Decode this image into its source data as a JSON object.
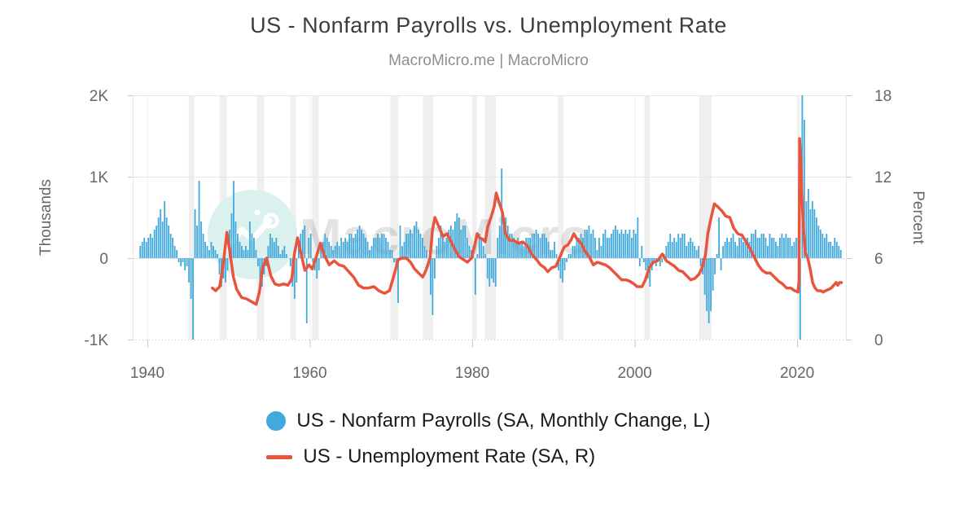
{
  "title": "US - Nonfarm Payrolls vs. Unemployment Rate",
  "subtitle": "MacroMicro.me | MacroMicro",
  "watermark_text": "MacroMicro",
  "colors": {
    "payrolls_blue": "#41a9dc",
    "unemployment_red": "#e8543c",
    "recession_band": "#efefef",
    "grid": "#e7e7e7",
    "axis_text": "#666666",
    "title_text": "#3c3c3c",
    "subtitle_text": "#8e8e8e",
    "legend_text": "#1b1b1b"
  },
  "legend": {
    "items": [
      {
        "label": "US - Nonfarm Payrolls (SA, Monthly Change, L)",
        "marker": "circle",
        "color": "#41a9dc"
      },
      {
        "label": "US - Unemployment Rate (SA, R)",
        "marker": "line",
        "color": "#e8543c"
      }
    ]
  },
  "chart_data": {
    "type": "bar+line",
    "title": "US - Nonfarm Payrolls vs. Unemployment Rate",
    "axes": {
      "x": {
        "min": 1938.2,
        "max": 2026.1,
        "ticks": [
          1940,
          1960,
          1980,
          2000,
          2020
        ]
      },
      "y_left": {
        "label": "Thousands",
        "min": -1000,
        "max": 2000,
        "ticks": [
          {
            "value": 2000,
            "label": "2K"
          },
          {
            "value": 1000,
            "label": "1K"
          },
          {
            "value": 0,
            "label": "0"
          },
          {
            "value": -1000,
            "label": "-1K"
          }
        ]
      },
      "y_right": {
        "label": "Percent",
        "min": 0,
        "max": 18,
        "ticks": [
          {
            "value": 18,
            "label": "18"
          },
          {
            "value": 12,
            "label": "12"
          },
          {
            "value": 6,
            "label": "6"
          },
          {
            "value": 0,
            "label": "0"
          }
        ]
      }
    },
    "recessions": [
      [
        1945.1,
        1945.8
      ],
      [
        1948.9,
        1949.8
      ],
      [
        1953.5,
        1954.4
      ],
      [
        1957.6,
        1958.3
      ],
      [
        1960.3,
        1961.1
      ],
      [
        1969.9,
        1970.9
      ],
      [
        1973.9,
        1975.2
      ],
      [
        1980.0,
        1980.55
      ],
      [
        1981.55,
        1982.9
      ],
      [
        1990.55,
        1991.2
      ],
      [
        2001.2,
        2001.85
      ],
      [
        2007.95,
        2009.45
      ],
      [
        2020.1,
        2020.3
      ]
    ],
    "series": [
      {
        "name": "US - Nonfarm Payrolls (SA, Monthly Change, L)",
        "type": "bar",
        "axis": "left",
        "unit": "Thousands",
        "color": "#41a9dc",
        "start_year": 1939,
        "step_years": 0.25,
        "values": [
          150,
          200,
          250,
          200,
          250,
          300,
          250,
          350,
          400,
          500,
          600,
          450,
          700,
          500,
          400,
          300,
          250,
          150,
          100,
          -50,
          -100,
          -50,
          -150,
          -100,
          -300,
          -500,
          -1900,
          600,
          400,
          950,
          450,
          300,
          200,
          150,
          100,
          200,
          150,
          100,
          50,
          -200,
          -350,
          -250,
          -300,
          -150,
          350,
          550,
          950,
          450,
          300,
          200,
          150,
          100,
          150,
          100,
          450,
          300,
          250,
          100,
          -100,
          -300,
          -350,
          -200,
          -100,
          150,
          300,
          250,
          200,
          250,
          150,
          50,
          100,
          150,
          50,
          0,
          -100,
          -350,
          -500,
          -300,
          150,
          300,
          350,
          400,
          -800,
          250,
          300,
          -50,
          -150,
          -250,
          -150,
          150,
          200,
          300,
          250,
          200,
          150,
          100,
          150,
          200,
          150,
          250,
          200,
          250,
          200,
          300,
          300,
          250,
          300,
          350,
          400,
          350,
          300,
          250,
          200,
          100,
          150,
          250,
          250,
          300,
          250,
          300,
          300,
          250,
          200,
          100,
          100,
          -50,
          -150,
          -550,
          400,
          150,
          200,
          300,
          300,
          350,
          300,
          400,
          450,
          350,
          300,
          250,
          150,
          100,
          -100,
          -450,
          -700,
          -250,
          150,
          250,
          400,
          300,
          200,
          250,
          350,
          400,
          350,
          450,
          550,
          500,
          350,
          400,
          400,
          250,
          150,
          100,
          150,
          -450,
          50,
          300,
          250,
          150,
          50,
          -250,
          -350,
          -250,
          -300,
          -350,
          250,
          400,
          1100,
          450,
          500,
          400,
          300,
          300,
          250,
          200,
          250,
          200,
          200,
          150,
          250,
          250,
          250,
          300,
          300,
          350,
          300,
          250,
          300,
          300,
          250,
          200,
          100,
          100,
          200,
          50,
          -150,
          -250,
          -300,
          -150,
          -50,
          50,
          50,
          150,
          150,
          250,
          250,
          300,
          250,
          350,
          350,
          400,
          300,
          350,
          250,
          100,
          250,
          150,
          300,
          350,
          250,
          250,
          300,
          350,
          400,
          350,
          300,
          350,
          300,
          350,
          300,
          350,
          250,
          350,
          300,
          500,
          -100,
          150,
          -50,
          -150,
          -250,
          -350,
          -150,
          -50,
          -100,
          0,
          -100,
          -50,
          50,
          150,
          200,
          300,
          200,
          250,
          200,
          300,
          250,
          300,
          300,
          150,
          200,
          250,
          200,
          150,
          100,
          150,
          -100,
          -200,
          -450,
          -650,
          -800,
          -650,
          -400,
          -200,
          50,
          500,
          -150,
          150,
          200,
          250,
          200,
          250,
          300,
          200,
          150,
          250,
          250,
          200,
          250,
          250,
          200,
          300,
          300,
          350,
          250,
          250,
          300,
          300,
          250,
          150,
          300,
          250,
          250,
          200,
          150,
          250,
          300,
          250,
          300,
          250,
          250,
          150,
          200,
          250,
          250,
          -20500,
          4800,
          1700,
          700,
          850,
          600,
          700,
          600,
          500,
          400,
          350,
          300,
          250,
          300,
          200,
          200,
          150,
          250,
          200,
          150,
          100
        ]
      },
      {
        "name": "US - Unemployment Rate (SA, R)",
        "type": "line",
        "axis": "right",
        "unit": "Percent",
        "color": "#e8543c",
        "points": [
          [
            1948.0,
            3.8
          ],
          [
            1948.4,
            3.6
          ],
          [
            1948.9,
            3.9
          ],
          [
            1949.3,
            5.3
          ],
          [
            1949.8,
            7.9
          ],
          [
            1950.2,
            6.3
          ],
          [
            1950.6,
            4.6
          ],
          [
            1951.0,
            3.7
          ],
          [
            1951.6,
            3.1
          ],
          [
            1952.2,
            3.0
          ],
          [
            1952.8,
            2.8
          ],
          [
            1953.4,
            2.6
          ],
          [
            1953.8,
            3.5
          ],
          [
            1954.2,
            5.3
          ],
          [
            1954.7,
            6.0
          ],
          [
            1955.2,
            4.7
          ],
          [
            1955.7,
            4.1
          ],
          [
            1956.2,
            4.0
          ],
          [
            1956.8,
            4.1
          ],
          [
            1957.3,
            4.0
          ],
          [
            1957.8,
            4.5
          ],
          [
            1958.1,
            6.3
          ],
          [
            1958.5,
            7.5
          ],
          [
            1958.9,
            6.4
          ],
          [
            1959.4,
            5.1
          ],
          [
            1959.9,
            5.5
          ],
          [
            1960.3,
            5.2
          ],
          [
            1960.8,
            6.1
          ],
          [
            1961.3,
            7.1
          ],
          [
            1961.8,
            6.2
          ],
          [
            1962.4,
            5.5
          ],
          [
            1963.0,
            5.8
          ],
          [
            1963.6,
            5.5
          ],
          [
            1964.2,
            5.4
          ],
          [
            1964.8,
            5.0
          ],
          [
            1965.4,
            4.6
          ],
          [
            1966.0,
            4.0
          ],
          [
            1966.6,
            3.8
          ],
          [
            1967.2,
            3.8
          ],
          [
            1967.9,
            3.9
          ],
          [
            1968.5,
            3.6
          ],
          [
            1969.2,
            3.4
          ],
          [
            1969.8,
            3.6
          ],
          [
            1970.3,
            4.6
          ],
          [
            1970.9,
            5.9
          ],
          [
            1971.4,
            6.0
          ],
          [
            1971.9,
            6.0
          ],
          [
            1972.4,
            5.7
          ],
          [
            1972.9,
            5.2
          ],
          [
            1973.4,
            4.9
          ],
          [
            1973.9,
            4.6
          ],
          [
            1974.3,
            5.1
          ],
          [
            1974.8,
            6.0
          ],
          [
            1975.1,
            8.1
          ],
          [
            1975.4,
            9.0
          ],
          [
            1975.9,
            8.3
          ],
          [
            1976.4,
            7.6
          ],
          [
            1976.9,
            7.8
          ],
          [
            1977.4,
            7.2
          ],
          [
            1977.9,
            6.6
          ],
          [
            1978.4,
            6.1
          ],
          [
            1978.9,
            5.9
          ],
          [
            1979.4,
            5.7
          ],
          [
            1979.9,
            6.0
          ],
          [
            1980.3,
            6.9
          ],
          [
            1980.6,
            7.8
          ],
          [
            1980.9,
            7.5
          ],
          [
            1981.3,
            7.4
          ],
          [
            1981.6,
            7.2
          ],
          [
            1981.9,
            8.3
          ],
          [
            1982.3,
            9.0
          ],
          [
            1982.7,
            9.8
          ],
          [
            1982.95,
            10.8
          ],
          [
            1983.3,
            10.1
          ],
          [
            1983.7,
            9.4
          ],
          [
            1984.1,
            7.8
          ],
          [
            1984.6,
            7.3
          ],
          [
            1985.1,
            7.3
          ],
          [
            1985.7,
            7.1
          ],
          [
            1986.2,
            7.2
          ],
          [
            1986.8,
            6.9
          ],
          [
            1987.3,
            6.3
          ],
          [
            1987.9,
            5.9
          ],
          [
            1988.4,
            5.5
          ],
          [
            1988.9,
            5.3
          ],
          [
            1989.3,
            5.0
          ],
          [
            1989.8,
            5.3
          ],
          [
            1990.3,
            5.4
          ],
          [
            1990.8,
            6.1
          ],
          [
            1991.3,
            6.8
          ],
          [
            1991.8,
            7.0
          ],
          [
            1992.2,
            7.4
          ],
          [
            1992.5,
            7.8
          ],
          [
            1992.9,
            7.4
          ],
          [
            1993.4,
            7.1
          ],
          [
            1993.9,
            6.5
          ],
          [
            1994.4,
            6.1
          ],
          [
            1994.9,
            5.5
          ],
          [
            1995.4,
            5.7
          ],
          [
            1995.9,
            5.6
          ],
          [
            1996.4,
            5.5
          ],
          [
            1996.9,
            5.3
          ],
          [
            1997.4,
            5.0
          ],
          [
            1997.9,
            4.7
          ],
          [
            1998.4,
            4.4
          ],
          [
            1998.9,
            4.4
          ],
          [
            1999.4,
            4.3
          ],
          [
            1999.9,
            4.1
          ],
          [
            2000.3,
            3.9
          ],
          [
            2000.9,
            3.9
          ],
          [
            2001.3,
            4.4
          ],
          [
            2001.8,
            5.3
          ],
          [
            2002.3,
            5.7
          ],
          [
            2002.8,
            5.8
          ],
          [
            2003.4,
            6.3
          ],
          [
            2003.9,
            5.8
          ],
          [
            2004.4,
            5.6
          ],
          [
            2004.9,
            5.4
          ],
          [
            2005.4,
            5.1
          ],
          [
            2005.9,
            5.0
          ],
          [
            2006.4,
            4.7
          ],
          [
            2006.9,
            4.4
          ],
          [
            2007.4,
            4.5
          ],
          [
            2007.9,
            4.8
          ],
          [
            2008.3,
            5.3
          ],
          [
            2008.7,
            6.2
          ],
          [
            2009.0,
            7.8
          ],
          [
            2009.3,
            8.7
          ],
          [
            2009.6,
            9.5
          ],
          [
            2009.8,
            10.0
          ],
          [
            2010.2,
            9.8
          ],
          [
            2010.7,
            9.5
          ],
          [
            2011.2,
            9.1
          ],
          [
            2011.7,
            9.0
          ],
          [
            2012.2,
            8.2
          ],
          [
            2012.7,
            7.8
          ],
          [
            2013.2,
            7.7
          ],
          [
            2013.7,
            7.2
          ],
          [
            2014.2,
            6.7
          ],
          [
            2014.7,
            6.1
          ],
          [
            2015.2,
            5.5
          ],
          [
            2015.7,
            5.1
          ],
          [
            2016.2,
            4.9
          ],
          [
            2016.7,
            4.9
          ],
          [
            2017.2,
            4.6
          ],
          [
            2017.7,
            4.3
          ],
          [
            2018.2,
            4.1
          ],
          [
            2018.7,
            3.8
          ],
          [
            2019.2,
            3.8
          ],
          [
            2019.7,
            3.6
          ],
          [
            2020.1,
            3.5
          ],
          [
            2020.24,
            4.4
          ],
          [
            2020.3,
            14.8
          ],
          [
            2020.45,
            13.2
          ],
          [
            2020.6,
            10.2
          ],
          [
            2020.8,
            7.9
          ],
          [
            2021.0,
            6.4
          ],
          [
            2021.3,
            6.0
          ],
          [
            2021.6,
            5.2
          ],
          [
            2021.9,
            4.2
          ],
          [
            2022.2,
            3.8
          ],
          [
            2022.5,
            3.6
          ],
          [
            2022.9,
            3.6
          ],
          [
            2023.2,
            3.5
          ],
          [
            2023.5,
            3.6
          ],
          [
            2023.9,
            3.7
          ],
          [
            2024.2,
            3.8
          ],
          [
            2024.5,
            4.0
          ],
          [
            2024.8,
            4.2
          ],
          [
            2025.0,
            4.0
          ],
          [
            2025.2,
            4.2
          ],
          [
            2025.45,
            4.2
          ]
        ]
      }
    ]
  }
}
